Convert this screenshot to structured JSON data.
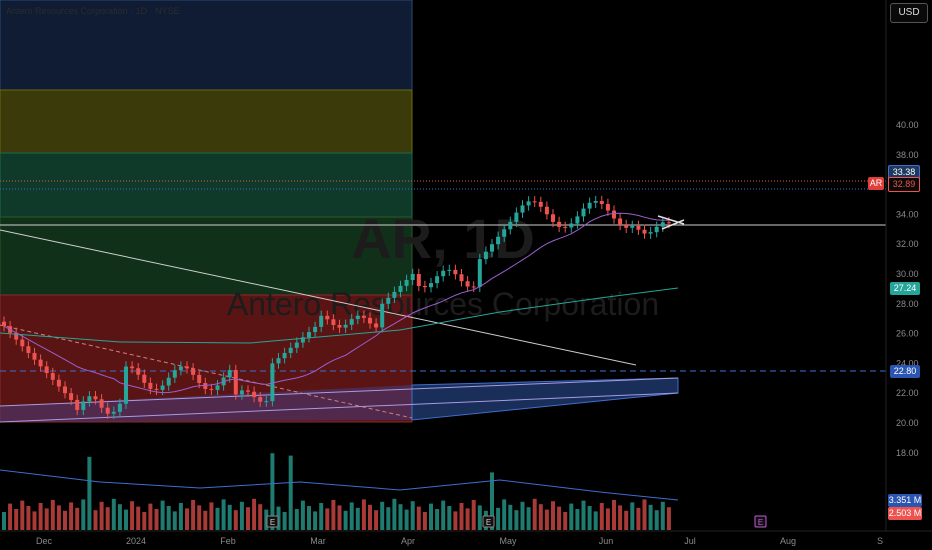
{
  "header": {
    "info_text": "Antero Resources Corporation · 1D · NYSE",
    "currency_button": "USD"
  },
  "watermark": {
    "symbol": "AR, 1D",
    "name": "Antero Resources Corporation"
  },
  "price_axis": {
    "ticks": [
      "40.00",
      "38.00",
      "36.00",
      "34.00",
      "32.00",
      "30.00",
      "28.00",
      "26.00",
      "24.00",
      "22.00",
      "20.00",
      "18.00"
    ],
    "ticks_values": [
      40,
      38,
      36,
      34,
      32,
      30,
      28,
      26,
      24,
      22,
      20,
      18
    ]
  },
  "time_axis": {
    "labels": [
      "Dec",
      "2024",
      "Feb",
      "Mar",
      "Apr",
      "May",
      "Jun",
      "Jul",
      "Aug",
      "S"
    ]
  },
  "price_labels": {
    "high_label": "33.38",
    "ar_symbol": "AR",
    "last_price": "32.89",
    "ema_value": "27.24",
    "level_value": "22.80",
    "volume_ma": "3.351 M",
    "volume_last": "2.503 M"
  },
  "colors": {
    "up": "#26a69a",
    "down": "#ef5350",
    "ema_teal": "#26a69a",
    "ma_purple": "#9c5fd1",
    "level_blue": "#3d6fd1",
    "zone_red": "#5a1414",
    "zone_green": "#10301a",
    "zone_teal": "#0f3a2a",
    "zone_olive": "#3a3a0a",
    "zone_navy": "#0f1c33"
  },
  "markers": {
    "earnings_label": "E"
  }
}
